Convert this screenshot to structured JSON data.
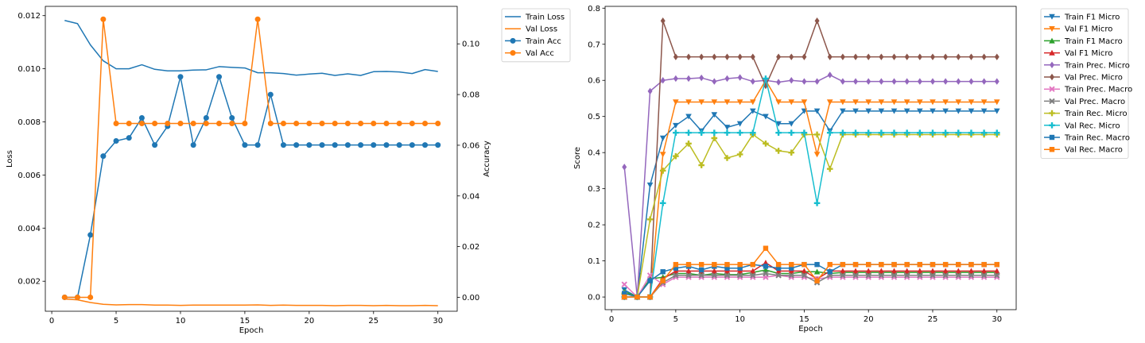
{
  "chart_data": [
    {
      "type": "line",
      "title": "",
      "xlabel": "Epoch",
      "ylabel": "Loss",
      "ylabel_right": "Accuracy",
      "xlim": [
        -0.5,
        31.5
      ],
      "ylim": [
        0.00087,
        0.01235
      ],
      "ylim_right": [
        -0.0055,
        0.1148
      ],
      "xticks": [
        0,
        5,
        10,
        15,
        20,
        25,
        30
      ],
      "yticks": [
        0.002,
        0.004,
        0.006,
        0.008,
        0.01,
        0.012
      ],
      "yticks_right": [
        0.0,
        0.02,
        0.04,
        0.06,
        0.08,
        0.1
      ],
      "grid": false,
      "legend_position": "outside-top-right",
      "x": [
        1,
        2,
        3,
        4,
        5,
        6,
        7,
        8,
        9,
        10,
        11,
        12,
        13,
        14,
        15,
        16,
        17,
        18,
        19,
        20,
        21,
        22,
        23,
        24,
        25,
        26,
        27,
        28,
        29,
        30
      ],
      "series": [
        {
          "name": "Train Loss",
          "axis": "left",
          "color": "#1f77b4",
          "marker": "none",
          "values": [
            0.01182,
            0.0117,
            0.0109,
            0.0103,
            0.01,
            0.01,
            0.01015,
            0.00998,
            0.00992,
            0.00992,
            0.00995,
            0.00996,
            0.01008,
            0.01005,
            0.01003,
            0.00985,
            0.00985,
            0.00982,
            0.00976,
            0.0098,
            0.00983,
            0.00975,
            0.00981,
            0.00975,
            0.00989,
            0.0099,
            0.00988,
            0.00982,
            0.00997,
            0.0099
          ]
        },
        {
          "name": "Val Loss",
          "axis": "left",
          "color": "#ff7f0e",
          "marker": "none",
          "values": [
            0.00133,
            0.0013,
            0.0012,
            0.00113,
            0.00111,
            0.00112,
            0.00112,
            0.0011,
            0.0011,
            0.00109,
            0.0011,
            0.0011,
            0.0011,
            0.0011,
            0.0011,
            0.00111,
            0.00109,
            0.0011,
            0.00109,
            0.00109,
            0.00109,
            0.00108,
            0.00109,
            0.00109,
            0.00108,
            0.00109,
            0.00108,
            0.00108,
            0.00109,
            0.00108
          ]
        },
        {
          "name": "Train Acc",
          "axis": "right",
          "color": "#1f77b4",
          "marker": "circle",
          "values": [
            0.0,
            0.0,
            0.0246,
            0.0557,
            0.0617,
            0.0629,
            0.0708,
            0.0601,
            0.0675,
            0.087,
            0.0601,
            0.0708,
            0.087,
            0.0708,
            0.0601,
            0.0601,
            0.08,
            0.0601,
            0.0601,
            0.0601,
            0.0601,
            0.0601,
            0.0601,
            0.0601,
            0.0601,
            0.0601,
            0.0601,
            0.0601,
            0.0601,
            0.0601
          ]
        },
        {
          "name": "Val Acc",
          "axis": "right",
          "color": "#ff7f0e",
          "marker": "circle",
          "values": [
            0.0,
            0.0,
            0.0,
            0.1097,
            0.0686,
            0.0686,
            0.0686,
            0.0686,
            0.0686,
            0.0686,
            0.0686,
            0.0686,
            0.0686,
            0.0686,
            0.0686,
            0.1097,
            0.0686,
            0.0686,
            0.0686,
            0.0686,
            0.0686,
            0.0686,
            0.0686,
            0.0686,
            0.0686,
            0.0686,
            0.0686,
            0.0686,
            0.0686,
            0.0686
          ]
        }
      ]
    },
    {
      "type": "line",
      "title": "",
      "xlabel": "Epoch",
      "ylabel": "Score",
      "xlim": [
        -0.5,
        31.5
      ],
      "ylim": [
        -0.035,
        0.805
      ],
      "xticks": [
        0,
        5,
        10,
        15,
        20,
        25,
        30
      ],
      "yticks": [
        0.0,
        0.1,
        0.2,
        0.3,
        0.4,
        0.5,
        0.6,
        0.7,
        0.8
      ],
      "grid": false,
      "legend_position": "outside-top-right",
      "x": [
        1,
        2,
        3,
        4,
        5,
        6,
        7,
        8,
        9,
        10,
        11,
        12,
        13,
        14,
        15,
        16,
        17,
        18,
        19,
        20,
        21,
        22,
        23,
        24,
        25,
        26,
        27,
        28,
        29,
        30
      ],
      "series": [
        {
          "name": "Train F1 Micro",
          "color": "#1f77b4",
          "marker": "tri_down",
          "values": [
            0.02,
            0.0,
            0.31,
            0.44,
            0.475,
            0.5,
            0.46,
            0.505,
            0.47,
            0.48,
            0.515,
            0.5,
            0.48,
            0.48,
            0.515,
            0.515,
            0.46,
            0.515,
            0.515,
            0.515,
            0.515,
            0.515,
            0.515,
            0.515,
            0.515,
            0.515,
            0.515,
            0.515,
            0.515,
            0.515
          ]
        },
        {
          "name": "Val F1 Micro",
          "color": "#ff7f0e",
          "marker": "tri_down",
          "values": [
            0.0,
            0.0,
            0.0,
            0.395,
            0.54,
            0.54,
            0.54,
            0.54,
            0.54,
            0.54,
            0.54,
            0.6,
            0.54,
            0.54,
            0.54,
            0.395,
            0.54,
            0.54,
            0.54,
            0.54,
            0.54,
            0.54,
            0.54,
            0.54,
            0.54,
            0.54,
            0.54,
            0.54,
            0.54,
            0.54
          ]
        },
        {
          "name": "Train F1 Macro",
          "color": "#2ca02c",
          "marker": "tri_up",
          "values": [
            0.015,
            0.0,
            0.05,
            0.055,
            0.065,
            0.065,
            0.06,
            0.065,
            0.062,
            0.062,
            0.068,
            0.075,
            0.065,
            0.065,
            0.07,
            0.07,
            0.065,
            0.068,
            0.068,
            0.068,
            0.068,
            0.068,
            0.068,
            0.068,
            0.068,
            0.068,
            0.068,
            0.068,
            0.068,
            0.068
          ]
        },
        {
          "name": "Val F1 Micro",
          "color": "#d62728",
          "marker": "tri_up",
          "values": [
            0.0,
            0.0,
            0.0,
            0.05,
            0.072,
            0.072,
            0.072,
            0.072,
            0.072,
            0.072,
            0.072,
            0.095,
            0.072,
            0.072,
            0.072,
            0.05,
            0.072,
            0.072,
            0.072,
            0.072,
            0.072,
            0.072,
            0.072,
            0.072,
            0.072,
            0.072,
            0.072,
            0.072,
            0.072,
            0.072
          ]
        },
        {
          "name": "Train Prec. Micro",
          "color": "#9467bd",
          "marker": "diamond",
          "values": [
            0.36,
            0.0,
            0.57,
            0.6,
            0.605,
            0.605,
            0.607,
            0.597,
            0.605,
            0.608,
            0.597,
            0.6,
            0.595,
            0.6,
            0.597,
            0.597,
            0.615,
            0.597,
            0.597,
            0.597,
            0.597,
            0.597,
            0.597,
            0.597,
            0.597,
            0.597,
            0.597,
            0.597,
            0.597,
            0.597
          ]
        },
        {
          "name": "Val Prec. Micro",
          "color": "#8c564b",
          "marker": "diamond",
          "values": [
            0.0,
            0.0,
            0.0,
            0.765,
            0.665,
            0.665,
            0.665,
            0.665,
            0.665,
            0.665,
            0.665,
            0.585,
            0.665,
            0.665,
            0.665,
            0.765,
            0.665,
            0.665,
            0.665,
            0.665,
            0.665,
            0.665,
            0.665,
            0.665,
            0.665,
            0.665,
            0.665,
            0.665,
            0.665,
            0.665
          ]
        },
        {
          "name": "Train Prec. Macro",
          "color": "#e377c2",
          "marker": "x",
          "values": [
            0.035,
            0.0,
            0.06,
            0.035,
            0.055,
            0.055,
            0.055,
            0.055,
            0.055,
            0.055,
            0.055,
            0.055,
            0.06,
            0.055,
            0.055,
            0.05,
            0.055,
            0.055,
            0.055,
            0.055,
            0.055,
            0.055,
            0.055,
            0.055,
            0.055,
            0.055,
            0.055,
            0.055,
            0.055,
            0.055
          ]
        },
        {
          "name": "Val Prec. Macro",
          "color": "#7f7f7f",
          "marker": "x",
          "values": [
            0.0,
            0.0,
            0.0,
            0.04,
            0.06,
            0.06,
            0.06,
            0.06,
            0.06,
            0.06,
            0.06,
            0.065,
            0.06,
            0.06,
            0.06,
            0.04,
            0.06,
            0.06,
            0.06,
            0.06,
            0.06,
            0.06,
            0.06,
            0.06,
            0.06,
            0.06,
            0.06,
            0.06,
            0.06,
            0.06
          ]
        },
        {
          "name": "Train Rec. Micro",
          "color": "#bcbd22",
          "marker": "plus",
          "values": [
            0.01,
            0.0,
            0.215,
            0.35,
            0.39,
            0.425,
            0.365,
            0.44,
            0.385,
            0.395,
            0.45,
            0.425,
            0.405,
            0.4,
            0.45,
            0.45,
            0.355,
            0.45,
            0.45,
            0.45,
            0.45,
            0.45,
            0.45,
            0.45,
            0.45,
            0.45,
            0.45,
            0.45,
            0.45,
            0.45
          ]
        },
        {
          "name": "Val Rec. Micro",
          "color": "#17becf",
          "marker": "plus",
          "values": [
            0.0,
            0.0,
            0.0,
            0.26,
            0.455,
            0.455,
            0.455,
            0.455,
            0.455,
            0.455,
            0.455,
            0.605,
            0.455,
            0.455,
            0.455,
            0.26,
            0.455,
            0.455,
            0.455,
            0.455,
            0.455,
            0.455,
            0.455,
            0.455,
            0.455,
            0.455,
            0.455,
            0.455,
            0.455,
            0.455
          ]
        },
        {
          "name": "Train Rec. Macro",
          "color": "#1f77b4",
          "marker": "square",
          "values": [
            0.01,
            0.0,
            0.045,
            0.07,
            0.08,
            0.085,
            0.075,
            0.085,
            0.08,
            0.08,
            0.09,
            0.085,
            0.08,
            0.08,
            0.09,
            0.09,
            0.07,
            0.09,
            0.09,
            0.09,
            0.09,
            0.09,
            0.09,
            0.09,
            0.09,
            0.09,
            0.09,
            0.09,
            0.09,
            0.09
          ]
        },
        {
          "name": "Val Rec. Macro",
          "color": "#ff7f0e",
          "marker": "square",
          "values": [
            0.0,
            0.0,
            0.0,
            0.045,
            0.09,
            0.09,
            0.09,
            0.09,
            0.09,
            0.09,
            0.09,
            0.135,
            0.09,
            0.09,
            0.09,
            0.045,
            0.09,
            0.09,
            0.09,
            0.09,
            0.09,
            0.09,
            0.09,
            0.09,
            0.09,
            0.09,
            0.09,
            0.09,
            0.09,
            0.09
          ]
        }
      ]
    }
  ]
}
